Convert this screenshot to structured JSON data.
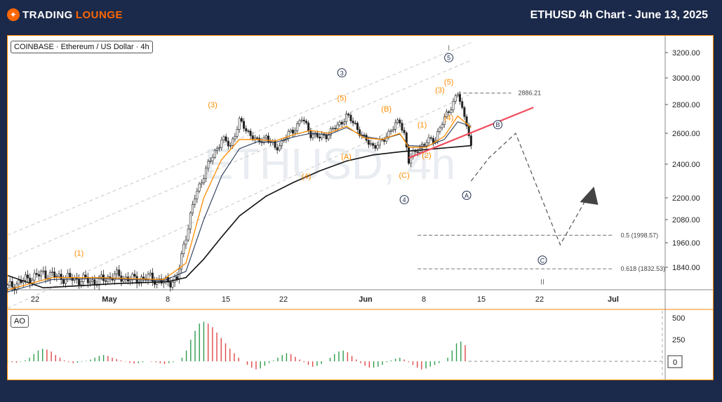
{
  "header": {
    "brand_part1": "TRADING",
    "brand_part2": "LOUNGE",
    "title": "ETHUSD 4h Chart - June 13, 2025"
  },
  "colors": {
    "accent": "#ff6600",
    "wave": "#ff8c00",
    "navy": "#1b2a4a",
    "trend": "#f04b5a",
    "bull": "#2e9e4f",
    "bear": "#e04848"
  },
  "main_panel": {
    "symbol_label": "COINBASE · Ethereum / US Dollar · 4h",
    "watermark": "ETHUSD, 4h"
  },
  "ao_panel": {
    "label": "AO",
    "ticks": [
      "500",
      "250",
      "0"
    ]
  },
  "chart_data": {
    "type": "candlestick",
    "y_ticks": [
      "3200.00",
      "3000.00",
      "2800.00",
      "2600.00",
      "2400.00",
      "2200.00",
      "2080.00",
      "1960.00",
      "1840.00"
    ],
    "x_ticks": [
      "22",
      "May",
      "8",
      "15",
      "22",
      "Jun",
      "8",
      "15",
      "22",
      "Jul"
    ],
    "price_path": [
      [
        0,
        1740
      ],
      [
        4,
        1780
      ],
      [
        8,
        1810
      ],
      [
        12,
        1790
      ],
      [
        16,
        1780
      ],
      [
        20,
        1770
      ],
      [
        24,
        1800
      ],
      [
        28,
        1780
      ],
      [
        32,
        1790
      ],
      [
        35,
        1765
      ],
      [
        38,
        1780
      ],
      [
        40,
        2000
      ],
      [
        42,
        2200
      ],
      [
        44,
        2340
      ],
      [
        46,
        2450
      ],
      [
        48,
        2560
      ],
      [
        50,
        2520
      ],
      [
        52,
        2680
      ],
      [
        54,
        2610
      ],
      [
        56,
        2540
      ],
      [
        58,
        2580
      ],
      [
        60,
        2500
      ],
      [
        62,
        2560
      ],
      [
        64,
        2620
      ],
      [
        66,
        2700
      ],
      [
        68,
        2600
      ],
      [
        70,
        2570
      ],
      [
        72,
        2600
      ],
      [
        74,
        2650
      ],
      [
        76,
        2720
      ],
      [
        78,
        2660
      ],
      [
        80,
        2560
      ],
      [
        82,
        2520
      ],
      [
        84,
        2540
      ],
      [
        86,
        2630
      ],
      [
        88,
        2680
      ],
      [
        89,
        2600
      ],
      [
        90,
        2420
      ],
      [
        92,
        2500
      ],
      [
        94,
        2540
      ],
      [
        96,
        2570
      ],
      [
        98,
        2700
      ],
      [
        100,
        2820
      ],
      [
        101,
        2880
      ],
      [
        102,
        2760
      ],
      [
        103,
        2680
      ],
      [
        104,
        2500
      ]
    ],
    "ema_fast": [
      [
        0,
        1730
      ],
      [
        10,
        1790
      ],
      [
        20,
        1790
      ],
      [
        35,
        1780
      ],
      [
        40,
        1860
      ],
      [
        44,
        2200
      ],
      [
        48,
        2430
      ],
      [
        52,
        2560
      ],
      [
        56,
        2560
      ],
      [
        60,
        2550
      ],
      [
        64,
        2590
      ],
      [
        68,
        2620
      ],
      [
        72,
        2600
      ],
      [
        76,
        2650
      ],
      [
        80,
        2570
      ],
      [
        84,
        2560
      ],
      [
        88,
        2600
      ],
      [
        90,
        2510
      ],
      [
        94,
        2510
      ],
      [
        98,
        2580
      ],
      [
        101,
        2720
      ],
      [
        104,
        2640
      ]
    ],
    "ema_mid": [
      [
        0,
        1720
      ],
      [
        10,
        1780
      ],
      [
        20,
        1785
      ],
      [
        35,
        1775
      ],
      [
        40,
        1820
      ],
      [
        44,
        2080
      ],
      [
        48,
        2330
      ],
      [
        52,
        2500
      ],
      [
        56,
        2545
      ],
      [
        60,
        2540
      ],
      [
        64,
        2575
      ],
      [
        68,
        2600
      ],
      [
        72,
        2590
      ],
      [
        76,
        2640
      ],
      [
        80,
        2580
      ],
      [
        84,
        2560
      ],
      [
        88,
        2595
      ],
      [
        90,
        2520
      ],
      [
        94,
        2515
      ],
      [
        98,
        2560
      ],
      [
        101,
        2680
      ],
      [
        104,
        2650
      ]
    ],
    "ema_slow": [
      [
        0,
        1800
      ],
      [
        8,
        1740
      ],
      [
        16,
        1750
      ],
      [
        24,
        1760
      ],
      [
        36,
        1770
      ],
      [
        40,
        1790
      ],
      [
        44,
        1880
      ],
      [
        48,
        1990
      ],
      [
        52,
        2100
      ],
      [
        58,
        2210
      ],
      [
        64,
        2290
      ],
      [
        70,
        2360
      ],
      [
        76,
        2420
      ],
      [
        82,
        2460
      ],
      [
        88,
        2480
      ],
      [
        94,
        2495
      ],
      [
        100,
        2510
      ],
      [
        104,
        2520
      ]
    ],
    "channel_lines": [
      {
        "from": [
          0,
          2000
        ],
        "to": [
          104,
          3280
        ]
      },
      {
        "from": [
          0,
          1880
        ],
        "to": [
          104,
          3140
        ]
      },
      {
        "from": [
          0,
          1640
        ],
        "to": [
          104,
          2880
        ]
      }
    ],
    "trendline": {
      "from": [
        90,
        2440
      ],
      "to": [
        118,
        2780
      ]
    },
    "projection_path": [
      [
        104,
        2300
      ],
      [
        108,
        2440
      ],
      [
        114,
        2600
      ],
      [
        124,
        1950
      ],
      [
        130,
        2200
      ]
    ],
    "levels": [
      {
        "value": 2886.21,
        "label": "2886.21",
        "from": 101,
        "to": 113
      },
      {
        "value": 1998.57,
        "label": "0.5 (1998.57)",
        "from": 92,
        "to": 136
      },
      {
        "value": 1832.53,
        "label": "0.618 (1832.53)",
        "from": 92,
        "to": 136
      }
    ],
    "waves": [
      {
        "text": "(1)",
        "x": 16,
        "y": 1910,
        "style": "orange"
      },
      {
        "text": "(3)",
        "x": 46,
        "y": 2800,
        "style": "orange"
      },
      {
        "text": "(4)",
        "x": 67,
        "y": 2330,
        "style": "orange"
      },
      {
        "text": "(5)",
        "x": 75,
        "y": 2850,
        "style": "orange"
      },
      {
        "text": "3",
        "x": 75,
        "y": 3040,
        "style": "circle"
      },
      {
        "text": "(A)",
        "x": 76,
        "y": 2450,
        "style": "orange"
      },
      {
        "text": "(B)",
        "x": 85,
        "y": 2770,
        "style": "orange"
      },
      {
        "text": "(C)",
        "x": 89,
        "y": 2335,
        "style": "orange"
      },
      {
        "text": "4",
        "x": 89,
        "y": 2190,
        "style": "circle"
      },
      {
        "text": "(1)",
        "x": 93,
        "y": 2660,
        "style": "orange"
      },
      {
        "text": "(2)",
        "x": 94,
        "y": 2460,
        "style": "orange"
      },
      {
        "text": "(3)",
        "x": 97,
        "y": 2910,
        "style": "orange"
      },
      {
        "text": "(4)",
        "x": 99,
        "y": 2710,
        "style": "orange"
      },
      {
        "text": "(5)",
        "x": 99,
        "y": 2970,
        "style": "orange"
      },
      {
        "text": "5",
        "x": 99,
        "y": 3160,
        "style": "circle"
      },
      {
        "text": "I",
        "x": 99,
        "y": 3240,
        "style": "gray"
      },
      {
        "text": "A",
        "x": 103,
        "y": 2215,
        "style": "circle"
      },
      {
        "text": "B",
        "x": 110,
        "y": 2660,
        "style": "circle"
      },
      {
        "text": "C",
        "x": 120,
        "y": 1875,
        "style": "circle"
      },
      {
        "text": "II",
        "x": 120,
        "y": 1770,
        "style": "gray"
      }
    ],
    "ao_values": [
      -5,
      -10,
      -15,
      -5,
      10,
      40,
      80,
      120,
      140,
      130,
      110,
      70,
      40,
      10,
      -10,
      -20,
      -15,
      -5,
      5,
      20,
      40,
      60,
      70,
      60,
      40,
      25,
      10,
      -5,
      -15,
      -25,
      -20,
      -10,
      0,
      -5,
      -10,
      -20,
      -30,
      -20,
      -10,
      0,
      40,
      120,
      240,
      340,
      420,
      440,
      420,
      380,
      320,
      260,
      200,
      140,
      90,
      40,
      0,
      -40,
      -70,
      -90,
      -80,
      -50,
      -20,
      10,
      40,
      70,
      90,
      80,
      50,
      20,
      -10,
      -40,
      -60,
      -50,
      -30,
      0,
      40,
      80,
      110,
      120,
      100,
      60,
      20,
      -20,
      -50,
      -70,
      -70,
      -60,
      -40,
      -10,
      10,
      30,
      40,
      20,
      -10,
      -40,
      -70,
      -90,
      -80,
      -60,
      -40,
      -20,
      0,
      40,
      120,
      200,
      220,
      180
    ]
  }
}
